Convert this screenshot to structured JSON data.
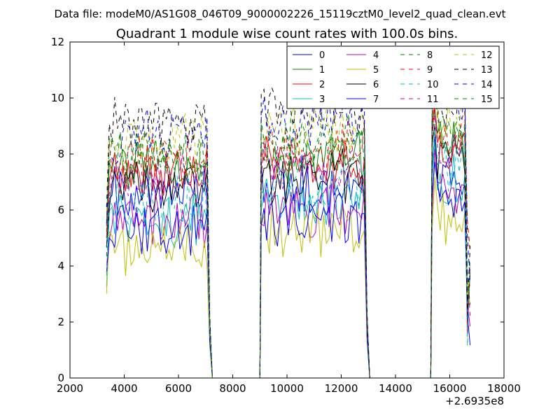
{
  "chart_data": {
    "type": "line",
    "suptitle": "Data file: modeM0/AS1G08_046T09_9000002226_15119cztM0_level2_quad_clean.evt",
    "title": "Quadrant 1 module wise count rates with 100.0s bins.",
    "xlabel": "",
    "ylabel": "",
    "x_offset_label": "+2.6935e8",
    "xlim": [
      2000,
      18000
    ],
    "ylim": [
      0,
      12
    ],
    "xticks": [
      2000,
      4000,
      6000,
      8000,
      10000,
      12000,
      14000,
      16000,
      18000
    ],
    "xtick_labels": [
      "2000",
      "4000",
      "6000",
      "8000",
      "10000",
      "12000",
      "14000",
      "16000",
      "18000"
    ],
    "yticks": [
      0,
      2,
      4,
      6,
      8,
      10,
      12
    ],
    "ytick_labels": [
      "0",
      "2",
      "4",
      "6",
      "8",
      "10",
      "12"
    ],
    "grid": false,
    "legend_position": "top-right",
    "legend_columns": 4,
    "segments": [
      {
        "x_start": 3350,
        "x_end": 7050,
        "step": 100,
        "fall_to": 7250
      },
      {
        "x_start": 9050,
        "x_end": 12850,
        "step": 100,
        "rise_from": 9000,
        "fall_to": 13050
      },
      {
        "x_start": 15350,
        "x_end": 16750,
        "step": 100,
        "rise_from": 15300
      }
    ],
    "x_zero_ranges": [
      [
        7250,
        8950
      ],
      [
        13050,
        15250
      ]
    ],
    "series": [
      {
        "name": "0",
        "color": "#0000ff",
        "dash": "solid",
        "level": [
          6.7,
          6.9,
          7.2
        ]
      },
      {
        "name": "1",
        "color": "#008000",
        "dash": "solid",
        "level": [
          7.6,
          7.9,
          8.4
        ]
      },
      {
        "name": "2",
        "color": "#ff0000",
        "dash": "solid",
        "level": [
          7.3,
          7.6,
          8.1
        ]
      },
      {
        "name": "3",
        "color": "#00bfbf",
        "dash": "solid",
        "level": [
          5.6,
          6.3,
          7.0
        ]
      },
      {
        "name": "4",
        "color": "#bf00bf",
        "dash": "solid",
        "level": [
          5.7,
          6.1,
          6.8
        ]
      },
      {
        "name": "5",
        "color": "#bfbf00",
        "dash": "solid",
        "level": [
          4.6,
          5.3,
          5.8
        ]
      },
      {
        "name": "6",
        "color": "#000000",
        "dash": "solid",
        "level": [
          6.9,
          7.1,
          7.8
        ]
      },
      {
        "name": "7",
        "color": "#0000ff",
        "dash": "solid",
        "level": [
          5.4,
          5.7,
          6.3
        ]
      },
      {
        "name": "8",
        "color": "#008000",
        "dash": "dashed",
        "level": [
          7.9,
          8.3,
          8.8
        ]
      },
      {
        "name": "9",
        "color": "#ff0000",
        "dash": "dashed",
        "level": [
          7.9,
          8.2,
          8.7
        ]
      },
      {
        "name": "10",
        "color": "#00bfbf",
        "dash": "dashed",
        "level": [
          6.4,
          6.8,
          7.5
        ]
      },
      {
        "name": "11",
        "color": "#bf00bf",
        "dash": "dashed",
        "level": [
          7.1,
          7.5,
          8.1
        ]
      },
      {
        "name": "12",
        "color": "#bfbf00",
        "dash": "dashed",
        "level": [
          8.4,
          8.9,
          9.3
        ]
      },
      {
        "name": "13",
        "color": "#000000",
        "dash": "dashed",
        "level": [
          9.1,
          9.7,
          10.0
        ]
      },
      {
        "name": "14",
        "color": "#0000ff",
        "dash": "dashed",
        "level": [
          8.6,
          9.2,
          9.7
        ]
      },
      {
        "name": "15",
        "color": "#008000",
        "dash": "dashed",
        "level": [
          7.9,
          8.4,
          9.0
        ]
      }
    ]
  }
}
